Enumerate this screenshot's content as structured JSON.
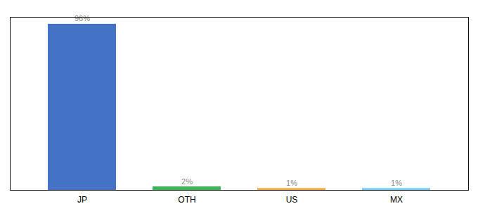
{
  "chart_data": {
    "type": "bar",
    "categories": [
      "JP",
      "OTH",
      "US",
      "MX"
    ],
    "values": [
      96,
      2,
      1,
      1
    ],
    "value_labels": [
      "96%",
      "2%",
      "1%",
      "1%"
    ],
    "colors": [
      "#4472c4",
      "#3cb554",
      "#f0a030",
      "#64c8f0"
    ],
    "ylim": [
      0,
      100
    ],
    "data_labels": true,
    "tick_labels": "x",
    "grid": false
  }
}
